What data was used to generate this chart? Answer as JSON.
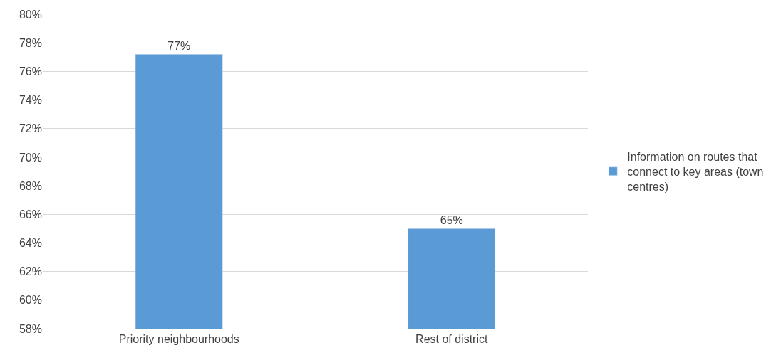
{
  "chart_data": {
    "type": "bar",
    "categories": [
      "Priority neighbourhoods",
      "Rest of district"
    ],
    "series": [
      {
        "name": "Information on routes that connect to key areas (town centres)",
        "color": "#5b9bd5",
        "values": [
          77.2,
          65.0
        ],
        "value_labels": [
          "77%",
          "65%"
        ]
      }
    ],
    "ylim": [
      58,
      80
    ],
    "yticks": [
      {
        "value": 58,
        "label": "58%"
      },
      {
        "value": 60,
        "label": "60%"
      },
      {
        "value": 62,
        "label": "62%"
      },
      {
        "value": 64,
        "label": "64%"
      },
      {
        "value": 66,
        "label": "66%"
      },
      {
        "value": 68,
        "label": "68%"
      },
      {
        "value": 70,
        "label": "70%"
      },
      {
        "value": 72,
        "label": "72%"
      },
      {
        "value": 74,
        "label": "74%"
      },
      {
        "value": 76,
        "label": "76%"
      },
      {
        "value": 78,
        "label": "78%"
      },
      {
        "value": 80,
        "label": "80%"
      }
    ],
    "grid": "y",
    "legend": "right"
  }
}
